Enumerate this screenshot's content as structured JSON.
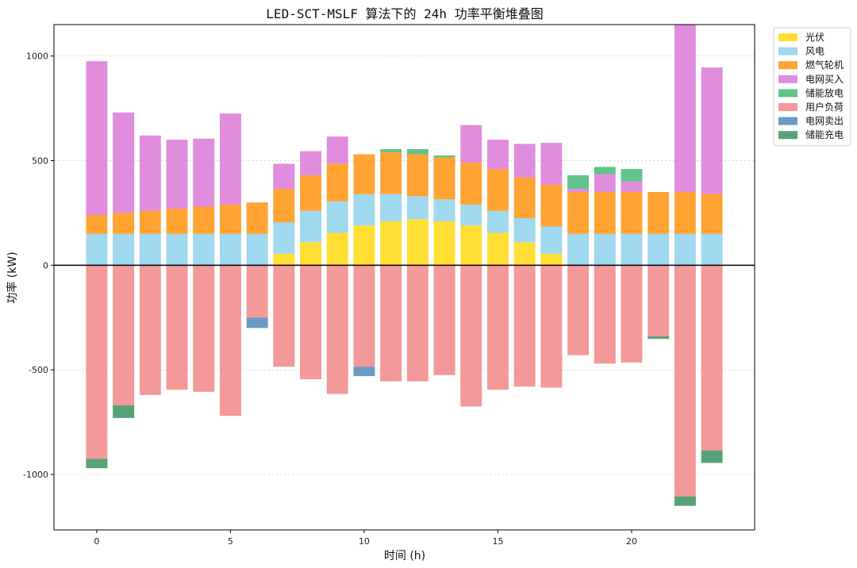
{
  "chart_data": {
    "type": "bar",
    "stacked": true,
    "title": "LED-SCT-MSLF 算法下的 24h 功率平衡堆叠图",
    "xlabel": "时间 (h)",
    "ylabel": "功率 (kW)",
    "x": [
      0,
      1,
      2,
      3,
      4,
      5,
      6,
      7,
      8,
      9,
      10,
      11,
      12,
      13,
      14,
      15,
      16,
      17,
      18,
      19,
      20,
      21,
      22,
      23
    ],
    "xticks": [
      0,
      5,
      10,
      15,
      20
    ],
    "xtick_labels": [
      "0",
      "5",
      "10",
      "15",
      "20"
    ],
    "yticks": [
      -1000,
      -500,
      0,
      500,
      1000
    ],
    "ytick_labels": [
      "-1000",
      "-500",
      "0",
      "500",
      "1000"
    ],
    "xlim": [
      -1.6,
      24.6
    ],
    "ylim": [
      -1265,
      1150
    ],
    "grid": "y-dotted",
    "zero_line": true,
    "legend_position": "outside-top-right",
    "series": [
      {
        "name": "光伏",
        "color": "#FFD700",
        "side": "positive",
        "values": [
          0,
          0,
          0,
          0,
          0,
          0,
          0,
          55,
          110,
          155,
          190,
          210,
          220,
          210,
          190,
          155,
          110,
          55,
          0,
          0,
          0,
          0,
          0,
          0
        ]
      },
      {
        "name": "风电",
        "color": "#87CEEB",
        "side": "positive",
        "values": [
          150,
          150,
          150,
          150,
          150,
          150,
          150,
          150,
          150,
          150,
          150,
          130,
          110,
          105,
          100,
          105,
          115,
          130,
          150,
          150,
          150,
          150,
          150,
          150
        ]
      },
      {
        "name": "燃气轮机",
        "color": "#FF8C00",
        "side": "positive",
        "values": [
          90,
          100,
          110,
          120,
          130,
          140,
          150,
          160,
          170,
          180,
          190,
          200,
          200,
          200,
          200,
          200,
          195,
          200,
          200,
          200,
          200,
          200,
          200,
          190
        ]
      },
      {
        "name": "电网买入",
        "color": "#DA70D6",
        "side": "positive",
        "values": [
          735,
          480,
          360,
          330,
          325,
          435,
          0,
          120,
          115,
          130,
          0,
          0,
          0,
          0,
          180,
          140,
          160,
          200,
          15,
          85,
          50,
          0,
          800,
          605
        ]
      },
      {
        "name": "储能放电",
        "color": "#3CB371",
        "side": "positive",
        "values": [
          0,
          0,
          0,
          0,
          0,
          0,
          0,
          0,
          0,
          0,
          0,
          15,
          25,
          10,
          0,
          0,
          0,
          0,
          65,
          35,
          60,
          0,
          0,
          0
        ]
      },
      {
        "name": "用户负荷",
        "color": "#F08080",
        "side": "negative",
        "values": [
          -925,
          -670,
          -620,
          -595,
          -605,
          -720,
          -250,
          -485,
          -545,
          -615,
          -485,
          -555,
          -555,
          -525,
          -675,
          -595,
          -580,
          -585,
          -430,
          -470,
          -465,
          -340,
          -1105,
          -885
        ]
      },
      {
        "name": "电网卖出",
        "color": "#4682B4",
        "side": "negative",
        "values": [
          0,
          0,
          0,
          0,
          0,
          0,
          -50,
          0,
          0,
          0,
          -45,
          0,
          0,
          0,
          0,
          0,
          0,
          0,
          0,
          0,
          0,
          0,
          0,
          0
        ]
      },
      {
        "name": "储能充电",
        "color": "#2E8B57",
        "side": "negative",
        "values": [
          -45,
          -60,
          0,
          0,
          0,
          0,
          0,
          0,
          0,
          0,
          0,
          0,
          0,
          0,
          0,
          0,
          0,
          0,
          0,
          0,
          0,
          -12,
          -45,
          -60
        ]
      }
    ]
  }
}
